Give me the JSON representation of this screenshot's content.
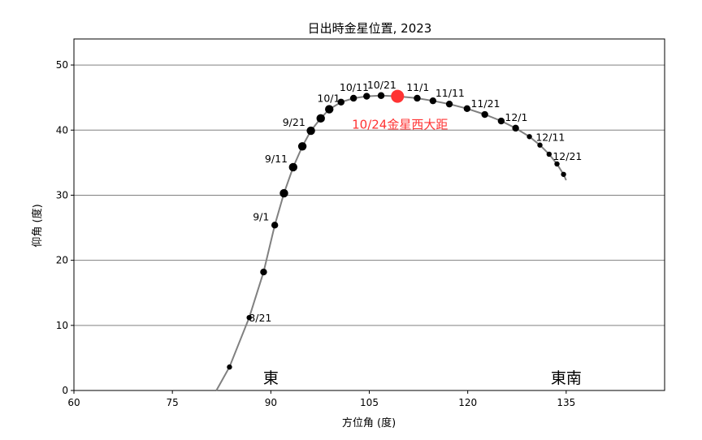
{
  "chart_data": {
    "type": "scatter",
    "title": "日出時金星位置, 2023",
    "xlabel": "方位角 (度)",
    "ylabel": "仰角 (度)",
    "xlim": [
      60,
      150
    ],
    "ylim": [
      0,
      54
    ],
    "xticks": [
      60,
      75,
      90,
      105,
      120,
      135
    ],
    "yticks": [
      0,
      10,
      20,
      30,
      40,
      50
    ],
    "grid": "horizontal",
    "colors": {
      "line": "#808080",
      "point": "#000000",
      "highlight": "#ff3333",
      "grid": "#808080"
    },
    "track": [
      {
        "x": 81.7,
        "y": 0
      },
      {
        "x": 83.7,
        "y": 3.6
      },
      {
        "x": 86.7,
        "y": 11.2
      },
      {
        "x": 88.9,
        "y": 18.2
      },
      {
        "x": 90.6,
        "y": 25.4
      },
      {
        "x": 92.0,
        "y": 30.3
      },
      {
        "x": 93.4,
        "y": 34.3
      },
      {
        "x": 94.8,
        "y": 37.5
      },
      {
        "x": 96.1,
        "y": 39.9
      },
      {
        "x": 97.6,
        "y": 41.8
      },
      {
        "x": 98.9,
        "y": 43.2
      },
      {
        "x": 100.7,
        "y": 44.3
      },
      {
        "x": 102.6,
        "y": 44.9
      },
      {
        "x": 104.6,
        "y": 45.2
      },
      {
        "x": 106.8,
        "y": 45.3
      },
      {
        "x": 109.3,
        "y": 45.2
      },
      {
        "x": 112.3,
        "y": 44.9
      },
      {
        "x": 114.7,
        "y": 44.5
      },
      {
        "x": 117.2,
        "y": 44.0
      },
      {
        "x": 119.9,
        "y": 43.3
      },
      {
        "x": 122.6,
        "y": 42.4
      },
      {
        "x": 125.1,
        "y": 41.4
      },
      {
        "x": 127.3,
        "y": 40.3
      },
      {
        "x": 129.4,
        "y": 39.0
      },
      {
        "x": 131.0,
        "y": 37.7
      },
      {
        "x": 132.4,
        "y": 36.3
      },
      {
        "x": 133.6,
        "y": 34.8
      },
      {
        "x": 134.6,
        "y": 33.2
      },
      {
        "x": 135.0,
        "y": 32.3
      }
    ],
    "points": [
      {
        "x": 83.7,
        "y": 3.6,
        "size": "small"
      },
      {
        "x": 86.7,
        "y": 11.2,
        "size": "small"
      },
      {
        "x": 88.9,
        "y": 18.2,
        "size": "medium"
      },
      {
        "x": 90.6,
        "y": 25.4,
        "size": "medium"
      },
      {
        "x": 92.0,
        "y": 30.3,
        "size": "large"
      },
      {
        "x": 93.4,
        "y": 34.3,
        "size": "large"
      },
      {
        "x": 94.8,
        "y": 37.5,
        "size": "large"
      },
      {
        "x": 96.1,
        "y": 39.9,
        "size": "large"
      },
      {
        "x": 97.6,
        "y": 41.8,
        "size": "large"
      },
      {
        "x": 98.9,
        "y": 43.2,
        "size": "large"
      },
      {
        "x": 100.7,
        "y": 44.3,
        "size": "medium"
      },
      {
        "x": 102.6,
        "y": 44.9,
        "size": "medium"
      },
      {
        "x": 104.6,
        "y": 45.2,
        "size": "medium"
      },
      {
        "x": 106.8,
        "y": 45.3,
        "size": "medium"
      },
      {
        "x": 112.3,
        "y": 44.9,
        "size": "medium"
      },
      {
        "x": 114.7,
        "y": 44.5,
        "size": "medium"
      },
      {
        "x": 117.2,
        "y": 44.0,
        "size": "medium"
      },
      {
        "x": 119.9,
        "y": 43.3,
        "size": "medium"
      },
      {
        "x": 122.6,
        "y": 42.4,
        "size": "medium"
      },
      {
        "x": 125.1,
        "y": 41.4,
        "size": "medium"
      },
      {
        "x": 127.3,
        "y": 40.3,
        "size": "medium"
      },
      {
        "x": 129.4,
        "y": 39.0,
        "size": "small"
      },
      {
        "x": 131.0,
        "y": 37.7,
        "size": "small"
      },
      {
        "x": 132.4,
        "y": 36.3,
        "size": "small"
      },
      {
        "x": 133.6,
        "y": 34.8,
        "size": "small"
      },
      {
        "x": 134.6,
        "y": 33.2,
        "size": "small"
      }
    ],
    "highlight": {
      "x": 109.3,
      "y": 45.2,
      "label": "10/24金星西大距"
    },
    "date_labels": [
      {
        "text": "8/21",
        "x": 86.9,
        "y": 11.2
      },
      {
        "text": "9/1",
        "x": 90.5,
        "y": 25.4
      },
      {
        "text": "9/11",
        "x": 93.3,
        "y": 34.3
      },
      {
        "text": "9/21",
        "x": 96.0,
        "y": 39.9
      },
      {
        "text": "10/1",
        "x": 98.8,
        "y": 43.2
      },
      {
        "text": "10/11",
        "x": 102.7,
        "y": 44.9
      },
      {
        "text": "10/21",
        "x": 106.9,
        "y": 45.3
      },
      {
        "text": "11/1",
        "x": 112.4,
        "y": 44.9
      },
      {
        "text": "11/11",
        "x": 117.3,
        "y": 44.0
      },
      {
        "text": "11/21",
        "x": 122.7,
        "y": 42.4
      },
      {
        "text": "12/1",
        "x": 127.4,
        "y": 40.3
      },
      {
        "text": "12/11",
        "x": 131.1,
        "y": 37.7
      },
      {
        "text": "12/21",
        "x": 133.7,
        "y": 34.8
      }
    ],
    "region_labels": [
      {
        "text": "東",
        "x": 90
      },
      {
        "text": "東南",
        "x": 135
      }
    ]
  }
}
